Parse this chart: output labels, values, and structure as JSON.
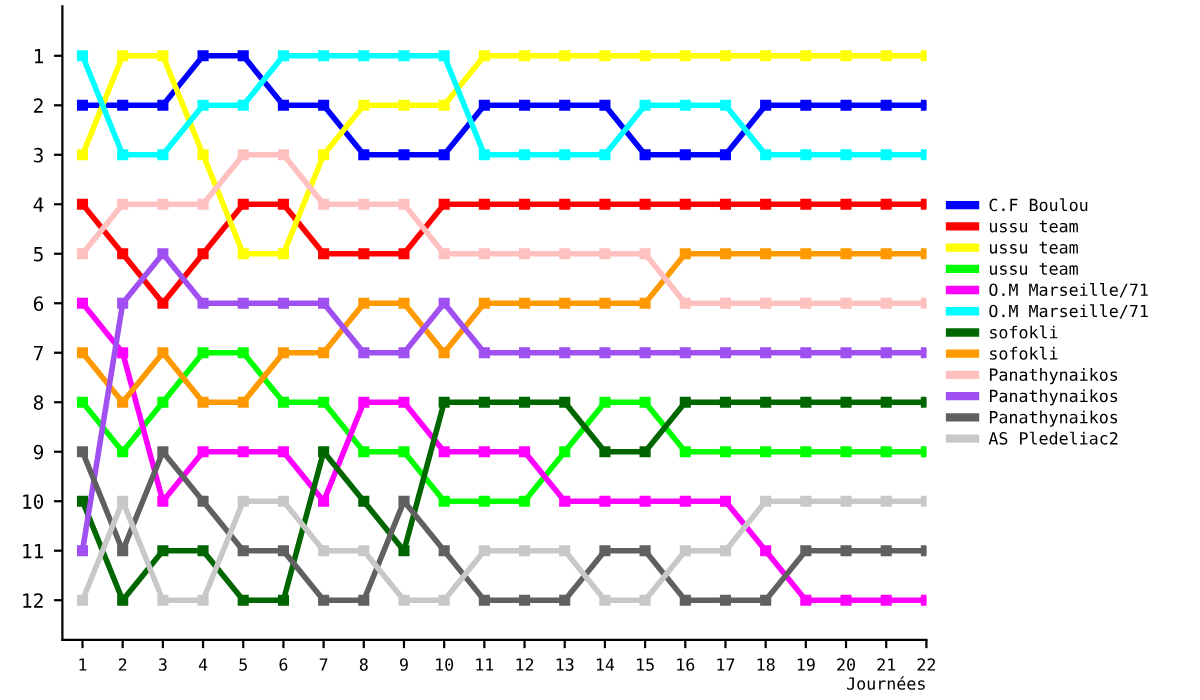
{
  "chart_data": {
    "type": "line",
    "xlabel": "Journées",
    "x": [
      1,
      2,
      3,
      4,
      5,
      6,
      7,
      8,
      9,
      10,
      11,
      12,
      13,
      14,
      15,
      16,
      17,
      18,
      19,
      20,
      21,
      22
    ],
    "xlim": [
      0.5,
      22
    ],
    "xticks": [
      1,
      2,
      3,
      4,
      5,
      6,
      7,
      8,
      9,
      10,
      11,
      12,
      13,
      14,
      15,
      16,
      17,
      18,
      19,
      20,
      21,
      22
    ],
    "ylim": [
      12.8,
      0
    ],
    "yticks": [
      1,
      2,
      3,
      4,
      5,
      6,
      7,
      8,
      9,
      10,
      11,
      12
    ],
    "marker": "square",
    "legend": "right",
    "grid": false,
    "series": [
      {
        "name": "C.F Boulou",
        "color": "#0000ff",
        "values": [
          2,
          2,
          2,
          1,
          1,
          2,
          2,
          3,
          3,
          3,
          2,
          2,
          2,
          2,
          3,
          3,
          3,
          2,
          2,
          2,
          2,
          2
        ]
      },
      {
        "name": "ussu team",
        "color": "#ff0000",
        "values": [
          4,
          5,
          6,
          5,
          4,
          4,
          5,
          5,
          5,
          4,
          4,
          4,
          4,
          4,
          4,
          4,
          4,
          4,
          4,
          4,
          4,
          4
        ]
      },
      {
        "name": "ussu team",
        "color": "#ffff00",
        "values": [
          3,
          1,
          1,
          3,
          5,
          5,
          3,
          2,
          2,
          2,
          1,
          1,
          1,
          1,
          1,
          1,
          1,
          1,
          1,
          1,
          1,
          1
        ]
      },
      {
        "name": "ussu team",
        "color": "#00ff00",
        "values": [
          8,
          9,
          8,
          7,
          7,
          8,
          8,
          9,
          9,
          10,
          10,
          10,
          9,
          8,
          8,
          9,
          9,
          9,
          9,
          9,
          9,
          9
        ]
      },
      {
        "name": "O.M Marseille/71",
        "color": "#ff00ff",
        "values": [
          6,
          7,
          10,
          9,
          9,
          9,
          10,
          8,
          8,
          9,
          9,
          9,
          10,
          10,
          10,
          10,
          10,
          11,
          12,
          12,
          12,
          12
        ]
      },
      {
        "name": "O.M Marseille/71",
        "color": "#00ffff",
        "values": [
          1,
          3,
          3,
          2,
          2,
          1,
          1,
          1,
          1,
          1,
          3,
          3,
          3,
          3,
          2,
          2,
          2,
          3,
          3,
          3,
          3,
          3
        ]
      },
      {
        "name": "sofokli",
        "color": "#006600",
        "values": [
          10,
          12,
          11,
          11,
          12,
          12,
          9,
          10,
          11,
          8,
          8,
          8,
          8,
          9,
          9,
          8,
          8,
          8,
          8,
          8,
          8,
          8
        ]
      },
      {
        "name": "sofokli",
        "color": "#ff9900",
        "values": [
          7,
          8,
          7,
          8,
          8,
          7,
          7,
          6,
          6,
          7,
          6,
          6,
          6,
          6,
          6,
          5,
          5,
          5,
          5,
          5,
          5,
          5
        ]
      },
      {
        "name": "Panathynaikos",
        "color": "#ffc0c0",
        "values": [
          5,
          4,
          4,
          4,
          3,
          3,
          4,
          4,
          4,
          5,
          5,
          5,
          5,
          5,
          5,
          6,
          6,
          6,
          6,
          6,
          6,
          6
        ]
      },
      {
        "name": "Panathynaikos",
        "color": "#a050f0",
        "values": [
          11,
          6,
          5,
          6,
          6,
          6,
          6,
          7,
          7,
          6,
          7,
          7,
          7,
          7,
          7,
          7,
          7,
          7,
          7,
          7,
          7,
          7
        ]
      },
      {
        "name": "Panathynaikos",
        "color": "#606060",
        "values": [
          9,
          11,
          9,
          10,
          11,
          11,
          12,
          12,
          10,
          11,
          12,
          12,
          12,
          11,
          11,
          12,
          12,
          12,
          11,
          11,
          11,
          11
        ]
      },
      {
        "name": "AS Pledeliac2",
        "color": "#c8c8c8",
        "values": [
          12,
          10,
          12,
          12,
          10,
          10,
          11,
          11,
          12,
          12,
          11,
          11,
          11,
          12,
          12,
          11,
          11,
          10,
          10,
          10,
          10,
          10
        ]
      }
    ]
  }
}
